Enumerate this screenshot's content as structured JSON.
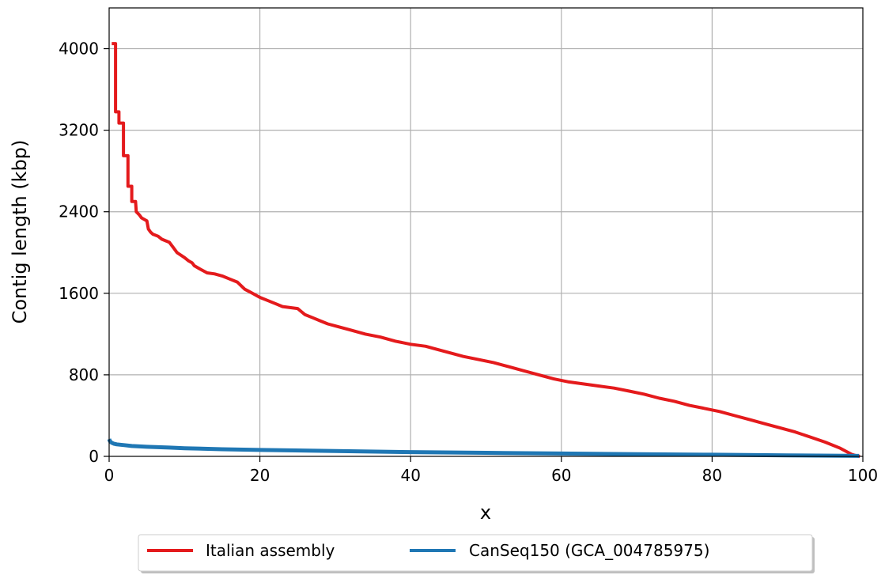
{
  "chart_data": {
    "type": "line",
    "title": "",
    "xlabel": "x",
    "ylabel": "Contig length (kbp)",
    "xlim": [
      0,
      100
    ],
    "ylim": [
      0,
      4400
    ],
    "x_ticks": [
      0,
      20,
      40,
      60,
      80,
      100
    ],
    "y_ticks": [
      0,
      800,
      1600,
      2400,
      3200,
      4000
    ],
    "grid": true,
    "legend_position": "bottom-center",
    "series": [
      {
        "name": "Italian assembly",
        "color": "#e41a1c",
        "x": [
          0.35,
          0.85,
          0.85,
          1.3,
          1.3,
          1.9,
          1.9,
          2.5,
          2.5,
          3.0,
          3.0,
          3.5,
          3.6,
          4.0,
          4.3,
          5.0,
          5.2,
          5.5,
          5.8,
          6.5,
          7.0,
          8.0,
          8.5,
          9.0,
          9.2,
          10.0,
          10.5,
          11.0,
          11.3,
          12.0,
          13.0,
          14.0,
          15.0,
          16.0,
          17.0,
          18.0,
          18.5,
          19.0,
          20.0,
          21.0,
          22.0,
          23.0,
          24.0,
          25.0,
          25.5,
          26.0,
          27.0,
          28.0,
          29.0,
          30.0,
          32.0,
          34.0,
          36.0,
          38.0,
          40.0,
          42.0,
          43.0,
          45.0,
          47.0,
          49.0,
          51.0,
          53.0,
          55.0,
          57.0,
          59.0,
          61.0,
          63.0,
          65.0,
          67.0,
          69.0,
          71.0,
          73.0,
          75.0,
          77.0,
          79.0,
          81.0,
          83.0,
          85.0,
          87.0,
          89.0,
          91.0,
          93.0,
          95.0,
          97.0,
          98.5,
          99.2,
          99.6
        ],
        "values": [
          4050,
          4050,
          3380,
          3380,
          3270,
          3270,
          2950,
          2950,
          2650,
          2650,
          2500,
          2500,
          2400,
          2370,
          2340,
          2310,
          2230,
          2200,
          2180,
          2160,
          2130,
          2100,
          2050,
          2000,
          1990,
          1950,
          1920,
          1900,
          1870,
          1840,
          1800,
          1790,
          1770,
          1740,
          1710,
          1640,
          1620,
          1600,
          1560,
          1530,
          1500,
          1470,
          1460,
          1450,
          1420,
          1390,
          1360,
          1330,
          1300,
          1280,
          1240,
          1200,
          1170,
          1130,
          1100,
          1080,
          1060,
          1020,
          980,
          950,
          920,
          880,
          840,
          800,
          760,
          730,
          710,
          690,
          670,
          640,
          610,
          570,
          540,
          500,
          470,
          440,
          400,
          360,
          320,
          280,
          240,
          190,
          140,
          80,
          20,
          5,
          0
        ]
      },
      {
        "name": "CanSeq150 (GCA_004785975)",
        "color": "#1f77b4",
        "x": [
          0,
          0.1,
          0.3,
          0.6,
          1,
          2,
          3,
          5,
          8,
          10,
          15,
          20,
          30,
          40,
          50,
          60,
          70,
          80,
          90,
          99.5
        ],
        "values": [
          170,
          150,
          135,
          125,
          118,
          110,
          102,
          94,
          86,
          80,
          70,
          63,
          52,
          42,
          35,
          28,
          22,
          16,
          10,
          5
        ]
      }
    ]
  }
}
